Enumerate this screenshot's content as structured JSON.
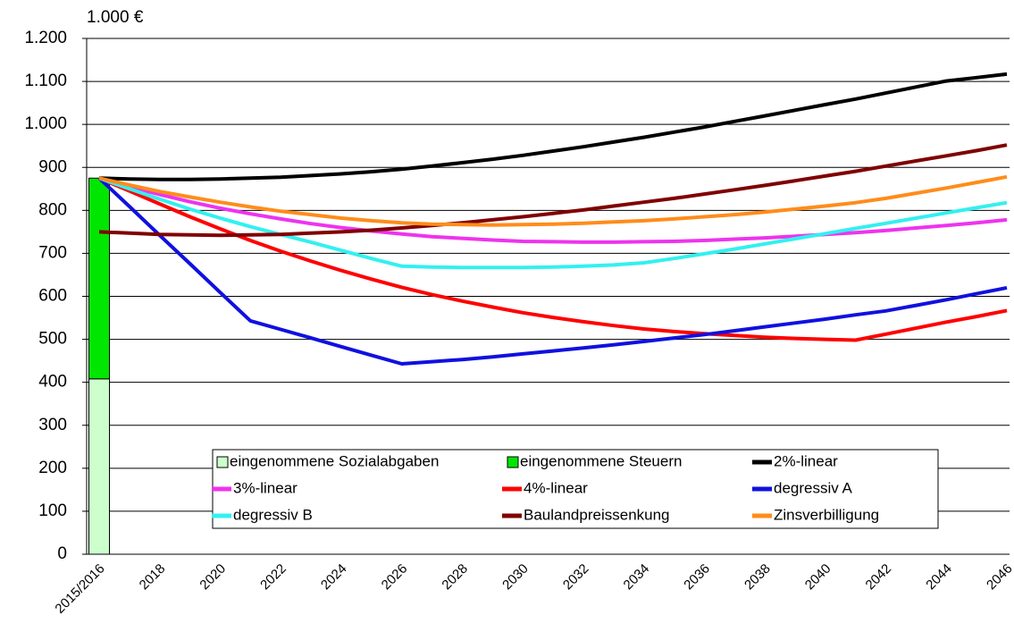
{
  "chart_data": {
    "type": "combo",
    "ylabel": "1.000 €",
    "categories": [
      "2015/2016",
      null,
      "2018",
      null,
      "2020",
      null,
      "2022",
      null,
      "2024",
      null,
      "2026",
      null,
      "2028",
      null,
      "2030",
      null,
      "2032",
      null,
      "2034",
      null,
      "2036",
      null,
      "2038",
      null,
      "2040",
      null,
      "2042",
      null,
      "2044",
      null,
      "2046"
    ],
    "ylim": [
      0,
      1200
    ],
    "yticks": [
      0,
      100,
      200,
      300,
      400,
      500,
      600,
      700,
      800,
      900,
      {
        "value": 1000,
        "label": "1.000"
      },
      {
        "value": 1100,
        "label": "1.100"
      },
      {
        "value": 1200,
        "label": "1.200"
      }
    ],
    "grid": true,
    "series": [
      {
        "name": "eingenommene Sozialabgaben",
        "type": "bar",
        "color": "#ccffcc",
        "values": [
          408,
          null,
          null,
          null,
          null,
          null,
          null,
          null,
          null,
          null,
          null,
          null,
          null,
          null,
          null,
          null,
          null,
          null,
          null,
          null,
          null,
          null,
          null,
          null,
          null,
          null,
          null,
          null,
          null,
          null,
          null
        ]
      },
      {
        "name": "eingenommene Steuern",
        "type": "bar",
        "color": "#00e600",
        "values": [
          467,
          null,
          null,
          null,
          null,
          null,
          null,
          null,
          null,
          null,
          null,
          null,
          null,
          null,
          null,
          null,
          null,
          null,
          null,
          null,
          null,
          null,
          null,
          null,
          null,
          null,
          null,
          null,
          null,
          null,
          null
        ]
      },
      {
        "name": "2%-linear",
        "type": "line",
        "color": "#000000",
        "values": [
          875,
          873,
          872,
          872,
          873,
          875,
          877,
          881,
          885,
          890,
          896,
          903,
          911,
          919,
          928,
          938,
          948,
          959,
          970,
          982,
          994,
          1007,
          1020,
          1033,
          1046,
          1059,
          1073,
          1087,
          1101,
          1109,
          1117
        ]
      },
      {
        "name": "3%-linear",
        "type": "line",
        "color": "#ee33ee",
        "values": [
          875,
          855,
          837,
          820,
          805,
          792,
          780,
          769,
          760,
          752,
          745,
          739,
          735,
          731,
          728,
          727,
          726,
          726,
          727,
          728,
          730,
          733,
          736,
          740,
          744,
          748,
          753,
          759,
          765,
          771,
          778
        ]
      },
      {
        "name": "4%-linear",
        "type": "line",
        "color": "#ff0000",
        "values": [
          875,
          845,
          815,
          785,
          757,
          730,
          705,
          682,
          660,
          640,
          621,
          604,
          589,
          575,
          562,
          551,
          541,
          532,
          524,
          518,
          513,
          509,
          505,
          502,
          500,
          498,
          512,
          526,
          540,
          553,
          567
        ]
      },
      {
        "name": "degressiv A",
        "type": "line",
        "color": "#1010e0",
        "values": [
          875,
          809,
          742,
          676,
          609,
          543,
          523,
          503,
          483,
          463,
          443,
          448,
          453,
          459,
          466,
          473,
          480,
          487,
          495,
          503,
          511,
          520,
          529,
          538,
          547,
          557,
          566,
          579,
          592,
          606,
          620
        ]
      },
      {
        "name": "degressiv B",
        "type": "line",
        "color": "#33f0f0",
        "values": [
          875,
          850,
          826,
          803,
          782,
          762,
          744,
          726,
          707,
          688,
          670,
          668,
          667,
          667,
          667,
          668,
          670,
          673,
          678,
          688,
          699,
          710,
          722,
          734,
          746,
          758,
          770,
          782,
          794,
          806,
          818
        ]
      },
      {
        "name": "Baulandpreissenkung",
        "type": "line",
        "color": "#800000",
        "values": [
          750,
          747,
          744,
          743,
          742,
          743,
          744,
          747,
          750,
          754,
          759,
          765,
          771,
          778,
          785,
          793,
          801,
          810,
          819,
          828,
          838,
          848,
          858,
          869,
          880,
          891,
          903,
          915,
          927,
          939,
          952
        ]
      },
      {
        "name": "Zinsverbilligung",
        "type": "line",
        "color": "#ff8c1a",
        "values": [
          875,
          859,
          844,
          831,
          819,
          808,
          798,
          790,
          782,
          776,
          771,
          768,
          767,
          766,
          767,
          768,
          770,
          773,
          776,
          780,
          785,
          790,
          796,
          803,
          810,
          818,
          828,
          840,
          852,
          865,
          878
        ]
      }
    ]
  }
}
